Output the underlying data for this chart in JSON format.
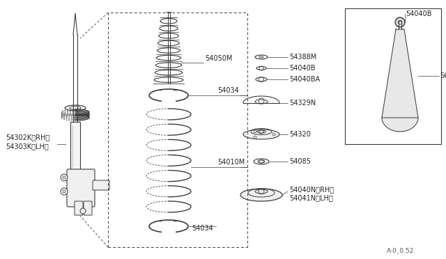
{
  "bg_color": "#ffffff",
  "line_color": "#3a3a3a",
  "text_color": "#222222",
  "diagram_code": "A·0¸0.52",
  "figsize": [
    6.4,
    3.72
  ],
  "dpi": 100,
  "xlim": [
    0,
    640
  ],
  "ylim": [
    0,
    372
  ]
}
